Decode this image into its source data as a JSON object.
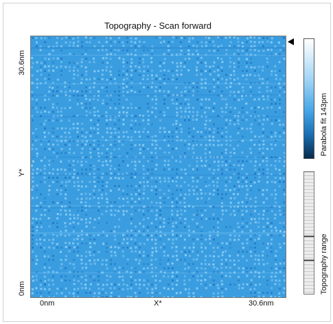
{
  "window": {
    "title": "Topography - Scan forward"
  },
  "image_view": {
    "y_axis": {
      "top_label": "30.6nm",
      "mid_label": "Y*",
      "bottom_label": "0nm"
    },
    "x_axis": {
      "left_label": "0nm",
      "mid_label": "X*",
      "right_label": "30.6nm"
    },
    "cursor_icon": "triangle-left-icon"
  },
  "colorbar": {
    "label": "Parabola fit 143pm",
    "colors": [
      "#ffffff",
      "#9fd3f5",
      "#46a6e8",
      "#1a6fb3",
      "#062b4b"
    ]
  },
  "range_control": {
    "label": "Topography range"
  },
  "colors": {
    "surface_base": "#3a9de0",
    "surface_light": "#8fd0f7",
    "surface_dark": "#1f74bf"
  }
}
